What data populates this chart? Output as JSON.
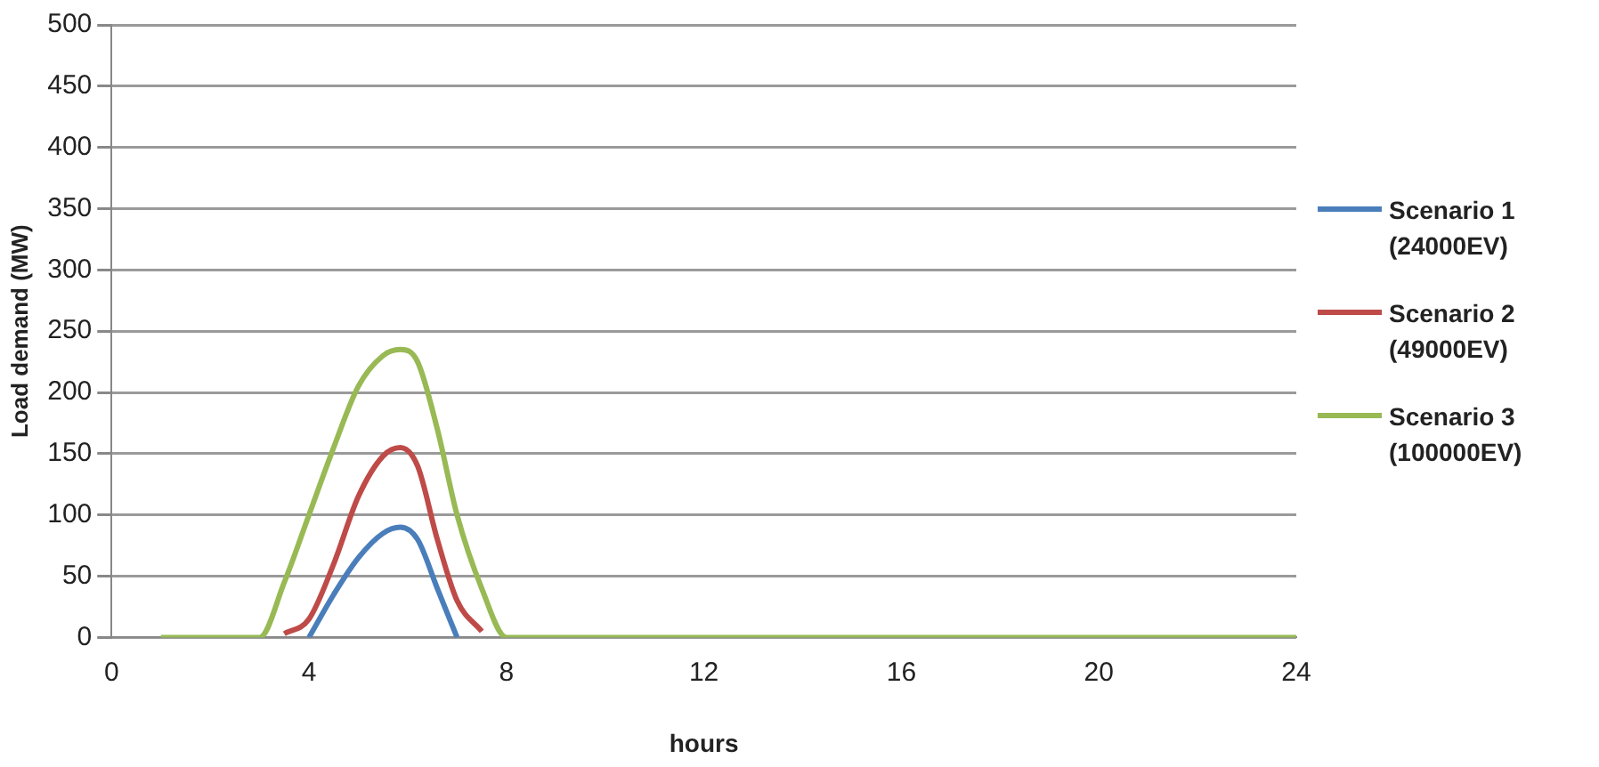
{
  "chart_data": {
    "type": "line",
    "xlabel": "hours",
    "ylabel": "Load demand (MW)",
    "xlim": [
      0,
      24
    ],
    "xticks": [
      0,
      4,
      8,
      12,
      16,
      20,
      24
    ],
    "ylim": [
      0,
      500
    ],
    "yticks": [
      0,
      50,
      100,
      150,
      200,
      250,
      300,
      350,
      400,
      450,
      500
    ],
    "grid": "y",
    "legend": "right",
    "marker": "none",
    "line_style": "solid",
    "series": [
      {
        "name": "Scenario 1 (24000EV)",
        "color": "#4a7ebb",
        "x": [
          4,
          4.5,
          5,
          5.5,
          5.85,
          6.2,
          6.6,
          7
        ],
        "values": [
          0,
          35,
          65,
          85,
          90,
          80,
          40,
          0
        ]
      },
      {
        "name": "Scenario 2 (49000EV)",
        "color": "#be4b48",
        "x": [
          3.5,
          4,
          4.5,
          5,
          5.5,
          5.85,
          6.2,
          6.6,
          7,
          7.5
        ],
        "values": [
          3,
          15,
          60,
          115,
          148,
          155,
          140,
          80,
          30,
          5
        ]
      },
      {
        "name": "Scenario 3 (100000EV)",
        "color": "#98b954",
        "x": [
          1,
          2,
          3,
          3.5,
          4,
          4.5,
          5,
          5.5,
          5.85,
          6.2,
          6.6,
          7,
          7.5,
          8,
          12,
          16,
          20,
          24
        ],
        "values": [
          0,
          0,
          0,
          45,
          100,
          155,
          205,
          230,
          235,
          225,
          170,
          100,
          40,
          0,
          0,
          0,
          0,
          0
        ]
      }
    ]
  }
}
